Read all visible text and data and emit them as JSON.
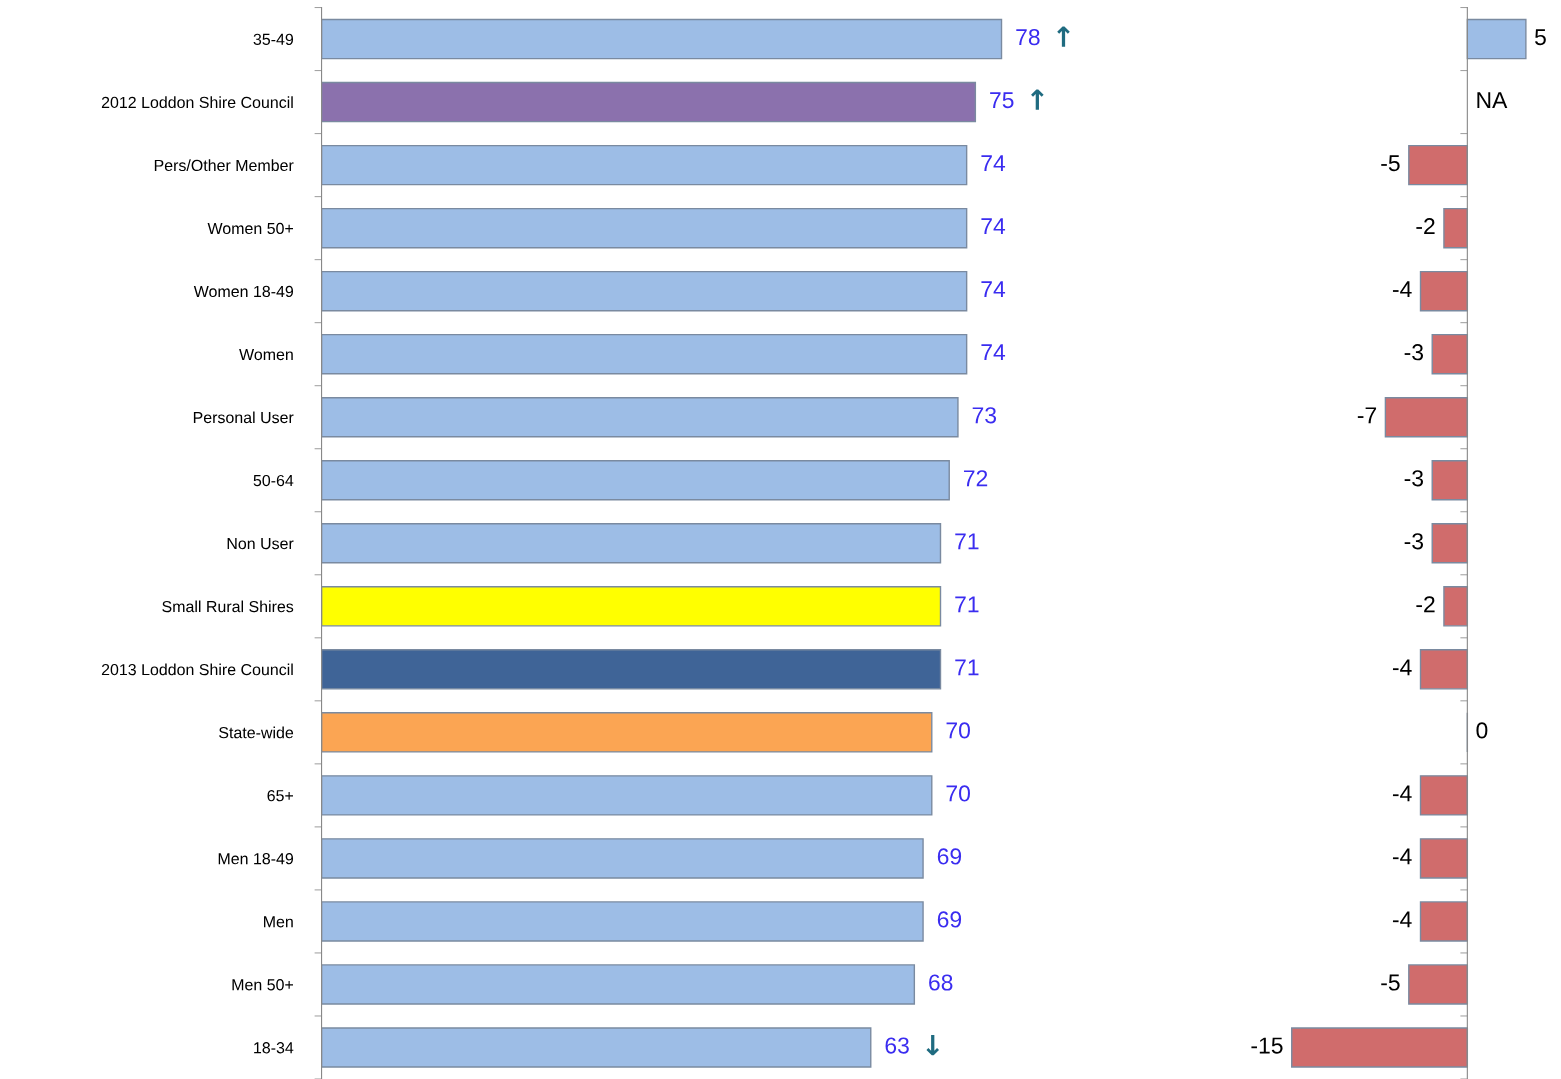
{
  "chart_data": [
    {
      "type": "bar",
      "orientation": "horizontal",
      "data_labels": true,
      "grid": false,
      "legend": false,
      "categories": [
        "35-49",
        "2012 Loddon Shire Council",
        "Pers/Other Member",
        "Women 50+",
        "Women 18-49",
        "Women",
        "Personal User",
        "50-64",
        "Non User",
        "Small Rural Shires",
        "2013 Loddon Shire Council",
        "State-wide",
        "65+",
        "Men 18-49",
        "Men",
        "Men 50+",
        "18-34"
      ],
      "values": [
        78,
        75,
        74,
        74,
        74,
        74,
        73,
        72,
        71,
        71,
        71,
        70,
        70,
        69,
        69,
        68,
        63
      ],
      "colors": [
        "#9dbde6",
        "#8b71ad",
        "#9dbde6",
        "#9dbde6",
        "#9dbde6",
        "#9dbde6",
        "#9dbde6",
        "#9dbde6",
        "#9dbde6",
        "#ffff00",
        "#3f6497",
        "#fba553",
        "#9dbde6",
        "#9dbde6",
        "#9dbde6",
        "#9dbde6",
        "#9dbde6"
      ],
      "annotations": [
        {
          "text": "↑",
          "x": 78,
          "y": "35-49"
        },
        {
          "text": "↑",
          "x": 75,
          "y": "2012 Loddon Shire Council"
        },
        {
          "text": "↓",
          "x": 63,
          "y": "18-34"
        }
      ]
    },
    {
      "type": "bar",
      "orientation": "horizontal",
      "grid": false,
      "legend": false,
      "categories": [
        null,
        null,
        null,
        null,
        null,
        null,
        null,
        null,
        null,
        null,
        null,
        null,
        null,
        null,
        null,
        null,
        null
      ],
      "values": [
        5,
        null,
        -5,
        -2,
        -4,
        -3,
        -7,
        -3,
        -3,
        -2,
        -4,
        0,
        -4,
        -4,
        -4,
        -5,
        -15
      ],
      "value_labels": [
        "5",
        "NA",
        "-5",
        "-2",
        "-4",
        "-3",
        "-7",
        "-3",
        "-3",
        "-2",
        "-4",
        "0",
        "-4",
        "-4",
        "-4",
        "-5",
        "-15"
      ],
      "colors": [
        "#9dbde6",
        null,
        "#d06c6c",
        "#d06c6c",
        "#d06c6c",
        "#d06c6c",
        "#d06c6c",
        "#d06c6c",
        "#d06c6c",
        "#d06c6c",
        "#d06c6c",
        null,
        "#d06c6c",
        "#d06c6c",
        "#d06c6c",
        "#d06c6c",
        "#d06c6c"
      ]
    }
  ]
}
